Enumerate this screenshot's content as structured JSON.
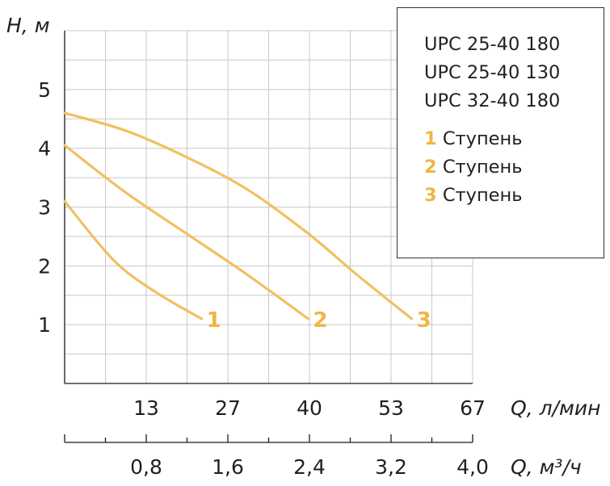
{
  "chart_data": {
    "type": "line",
    "ylabel": "H, м",
    "xlabel": "Q, л/мин",
    "xlabel_secondary": "Q, м³/ч",
    "yticks": [
      "1",
      "2",
      "3",
      "4",
      "5"
    ],
    "xticks": [
      "13",
      "27",
      "40",
      "53",
      "67"
    ],
    "xticks_secondary": [
      "0,8",
      "1,6",
      "2,4",
      "3,2",
      "4,0"
    ],
    "xlim": [
      0,
      67
    ],
    "ylim": [
      0,
      6
    ],
    "grid": true,
    "series": [
      {
        "name": "1 Ступень",
        "label": "1",
        "x": [
          0,
          8,
          15,
          22.5
        ],
        "y": [
          3.1,
          2.1,
          1.55,
          1.1
        ]
      },
      {
        "name": "2 Ступень",
        "label": "2",
        "x": [
          0,
          10,
          20,
          30,
          40
        ],
        "y": [
          4.05,
          3.25,
          2.55,
          1.85,
          1.1
        ]
      },
      {
        "name": "3 Ступень",
        "label": "3",
        "x": [
          0,
          10,
          20,
          30,
          40,
          48,
          57
        ],
        "y": [
          4.6,
          4.3,
          3.85,
          3.3,
          2.55,
          1.85,
          1.1
        ]
      }
    ],
    "colors": {
      "line": "#f0c060",
      "label": "#f0b545"
    }
  },
  "legend": {
    "models": [
      "UPC 25-40 180",
      "UPC 25-40 130",
      "UPC 32-40 180"
    ],
    "stages": [
      {
        "num": "1",
        "label": "Ступень"
      },
      {
        "num": "2",
        "label": "Ступень"
      },
      {
        "num": "3",
        "label": "Ступень"
      }
    ]
  }
}
